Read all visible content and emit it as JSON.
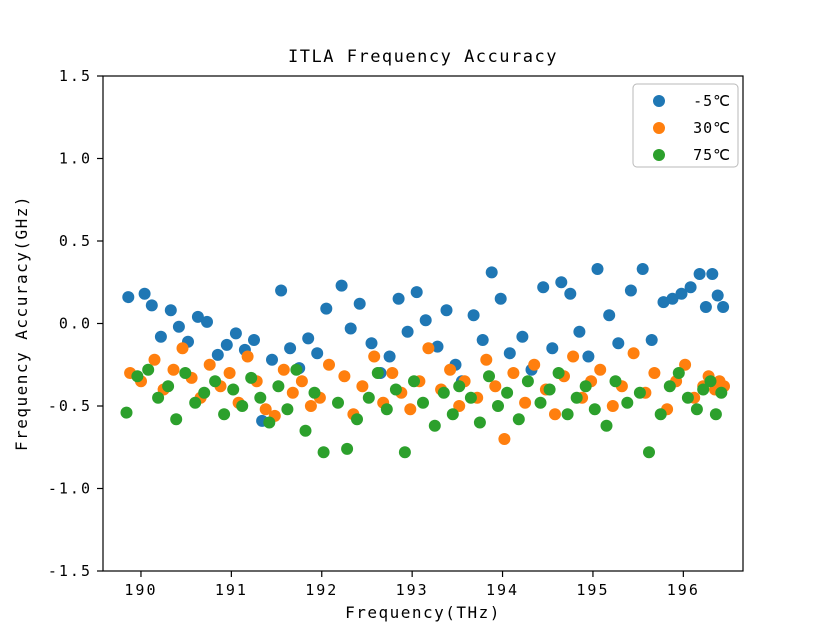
{
  "chart_data": {
    "type": "scatter",
    "title": "ITLA Frequency Accuracy",
    "xlabel": "Frequency(THz)",
    "ylabel": "Frequency Accuracy(GHz)",
    "xlim": [
      189.58,
      196.66
    ],
    "ylim": [
      -1.5,
      1.5
    ],
    "xticks": [
      190,
      191,
      192,
      193,
      194,
      195,
      196
    ],
    "xtick_labels": [
      "190",
      "191",
      "192",
      "193",
      "194",
      "195",
      "196"
    ],
    "yticks": [
      -1.5,
      -1.0,
      -0.5,
      0.0,
      0.5,
      1.0,
      1.5
    ],
    "ytick_labels": [
      "-1.5",
      "-1.0",
      "-0.5",
      "0.0",
      "0.5",
      "1.0",
      "1.5"
    ],
    "grid": false,
    "legend_position": "upper right",
    "marker_radius_px": 6,
    "series": [
      {
        "name": "-5℃",
        "color": "#1f77b4",
        "x": [
          189.86,
          190.04,
          190.12,
          190.22,
          190.33,
          190.42,
          190.52,
          190.63,
          190.73,
          190.85,
          190.95,
          191.05,
          191.15,
          191.25,
          191.34,
          191.45,
          191.55,
          191.65,
          191.75,
          191.85,
          191.95,
          192.05,
          192.22,
          192.32,
          192.42,
          192.55,
          192.65,
          192.75,
          192.85,
          192.95,
          193.05,
          193.15,
          193.28,
          193.38,
          193.48,
          193.55,
          193.68,
          193.78,
          193.88,
          193.98,
          194.08,
          194.22,
          194.32,
          194.45,
          194.55,
          194.65,
          194.75,
          194.85,
          194.95,
          195.05,
          195.18,
          195.28,
          195.42,
          195.55,
          195.65,
          195.78,
          195.88,
          195.98,
          196.08,
          196.18,
          196.25,
          196.32,
          196.38,
          196.44
        ],
        "y": [
          0.16,
          0.18,
          0.11,
          -0.08,
          0.08,
          -0.02,
          -0.11,
          0.04,
          0.01,
          -0.19,
          -0.13,
          -0.06,
          -0.16,
          -0.1,
          -0.59,
          -0.22,
          0.2,
          -0.15,
          -0.27,
          -0.09,
          -0.18,
          0.09,
          0.23,
          -0.03,
          0.12,
          -0.12,
          -0.3,
          -0.2,
          0.15,
          -0.05,
          0.19,
          0.02,
          -0.14,
          0.08,
          -0.25,
          -0.35,
          0.05,
          -0.1,
          0.31,
          0.15,
          -0.18,
          -0.08,
          -0.28,
          0.22,
          -0.15,
          0.25,
          0.18,
          -0.05,
          -0.2,
          0.33,
          0.05,
          -0.12,
          0.2,
          0.33,
          -0.1,
          0.13,
          0.15,
          0.18,
          0.22,
          0.3,
          0.1,
          0.3,
          0.17,
          0.1
        ]
      },
      {
        "name": "30℃",
        "color": "#ff7f0e",
        "x": [
          189.88,
          190.0,
          190.15,
          190.25,
          190.36,
          190.46,
          190.56,
          190.66,
          190.76,
          190.88,
          190.98,
          191.08,
          191.18,
          191.28,
          191.38,
          191.48,
          191.58,
          191.68,
          191.78,
          191.88,
          191.98,
          192.08,
          192.25,
          192.35,
          192.45,
          192.58,
          192.68,
          192.78,
          192.88,
          192.98,
          193.08,
          193.18,
          193.32,
          193.42,
          193.52,
          193.58,
          193.72,
          193.82,
          193.92,
          194.02,
          194.12,
          194.25,
          194.35,
          194.48,
          194.58,
          194.68,
          194.78,
          194.88,
          194.98,
          195.08,
          195.22,
          195.32,
          195.45,
          195.58,
          195.68,
          195.82,
          195.92,
          196.02,
          196.12,
          196.22,
          196.28,
          196.35,
          196.4,
          196.45
        ],
        "y": [
          -0.3,
          -0.35,
          -0.22,
          -0.4,
          -0.28,
          -0.15,
          -0.33,
          -0.45,
          -0.25,
          -0.38,
          -0.3,
          -0.48,
          -0.2,
          -0.35,
          -0.52,
          -0.56,
          -0.28,
          -0.42,
          -0.35,
          -0.5,
          -0.45,
          -0.25,
          -0.32,
          -0.55,
          -0.38,
          -0.2,
          -0.48,
          -0.3,
          -0.42,
          -0.52,
          -0.35,
          -0.15,
          -0.4,
          -0.28,
          -0.5,
          -0.35,
          -0.45,
          -0.22,
          -0.38,
          -0.7,
          -0.3,
          -0.48,
          -0.25,
          -0.4,
          -0.55,
          -0.32,
          -0.2,
          -0.45,
          -0.35,
          -0.28,
          -0.5,
          -0.38,
          -0.18,
          -0.42,
          -0.3,
          -0.52,
          -0.35,
          -0.25,
          -0.45,
          -0.38,
          -0.32,
          -0.4,
          -0.35,
          -0.38
        ]
      },
      {
        "name": "75℃",
        "color": "#2ca02c",
        "x": [
          189.84,
          189.96,
          190.08,
          190.19,
          190.3,
          190.39,
          190.49,
          190.6,
          190.7,
          190.82,
          190.92,
          191.02,
          191.12,
          191.22,
          191.32,
          191.42,
          191.52,
          191.62,
          191.72,
          191.82,
          191.92,
          192.02,
          192.18,
          192.28,
          192.39,
          192.52,
          192.62,
          192.72,
          192.82,
          192.92,
          193.02,
          193.12,
          193.25,
          193.35,
          193.45,
          193.52,
          193.65,
          193.75,
          193.85,
          193.95,
          194.05,
          194.18,
          194.28,
          194.42,
          194.52,
          194.62,
          194.72,
          194.82,
          194.92,
          195.02,
          195.15,
          195.25,
          195.38,
          195.52,
          195.62,
          195.75,
          195.85,
          195.95,
          196.05,
          196.15,
          196.22,
          196.3,
          196.36,
          196.42
        ],
        "y": [
          -0.54,
          -0.32,
          -0.28,
          -0.45,
          -0.38,
          -0.58,
          -0.3,
          -0.48,
          -0.42,
          -0.35,
          -0.55,
          -0.4,
          -0.5,
          -0.33,
          -0.45,
          -0.6,
          -0.38,
          -0.52,
          -0.28,
          -0.65,
          -0.42,
          -0.78,
          -0.48,
          -0.76,
          -0.58,
          -0.45,
          -0.3,
          -0.52,
          -0.4,
          -0.78,
          -0.35,
          -0.48,
          -0.62,
          -0.42,
          -0.55,
          -0.38,
          -0.45,
          -0.6,
          -0.32,
          -0.5,
          -0.42,
          -0.58,
          -0.35,
          -0.48,
          -0.4,
          -0.3,
          -0.55,
          -0.45,
          -0.38,
          -0.52,
          -0.62,
          -0.35,
          -0.48,
          -0.42,
          -0.78,
          -0.55,
          -0.38,
          -0.3,
          -0.45,
          -0.52,
          -0.4,
          -0.35,
          -0.55,
          -0.42
        ]
      }
    ]
  },
  "layout_labels": {
    "title": "ITLA Frequency Accuracy",
    "xlabel": "Frequency(THz)",
    "ylabel": "Frequency Accuracy(GHz)"
  }
}
